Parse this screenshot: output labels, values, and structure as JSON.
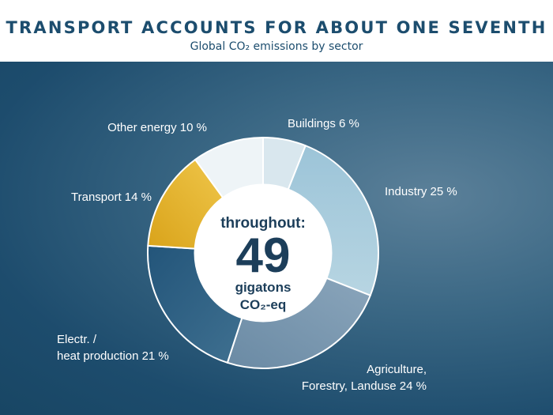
{
  "header": {
    "title": "TRANSPORT ACCOUNTS FOR ABOUT ONE SEVENTH",
    "subtitle": "Global CO₂ emissions by sector"
  },
  "center": {
    "line1": "throughout:",
    "value": "49",
    "line3": "gigatons",
    "line4": "CO₂-eq"
  },
  "chart_data": {
    "type": "pie",
    "title": "TRANSPORT ACCOUNTS FOR ABOUT ONE SEVENTH",
    "subtitle": "Global CO₂ emissions by sector",
    "total": {
      "value": 49,
      "unit": "gigatons CO₂-eq"
    },
    "slices": [
      {
        "name": "Buildings",
        "value": 6,
        "color": "#d9e7ee",
        "label": [
          "Buildings 6 %"
        ]
      },
      {
        "name": "Industry",
        "value": 25,
        "color": "#9cc3d6",
        "label": [
          "Industry 25 %"
        ]
      },
      {
        "name": "Agriculture, Forestry, Landuse",
        "value": 24,
        "color": "#7191ab",
        "label": [
          "Agriculture,",
          "Forestry, Landuse 24 %"
        ]
      },
      {
        "name": "Electr. / heat production",
        "value": 21,
        "color": "#2c5f80",
        "label": [
          "Electr. /",
          "heat production 21 %"
        ]
      },
      {
        "name": "Transport",
        "value": 14,
        "color": "#e4b11f",
        "label": [
          "Transport  14 %"
        ]
      },
      {
        "name": "Other energy",
        "value": 10,
        "color": "#eef4f7",
        "label": [
          "Other energy  10 %"
        ]
      }
    ]
  }
}
